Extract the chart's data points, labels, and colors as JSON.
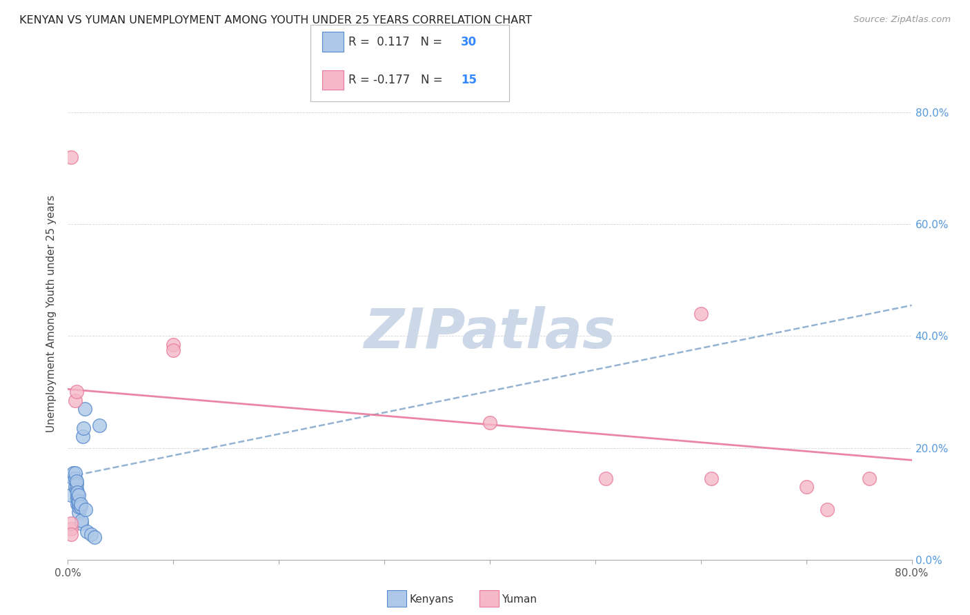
{
  "title": "KENYAN VS YUMAN UNEMPLOYMENT AMONG YOUTH UNDER 25 YEARS CORRELATION CHART",
  "source": "Source: ZipAtlas.com",
  "ylabel": "Unemployment Among Youth under 25 years",
  "legend_kenyans": "Kenyans",
  "legend_yuman": "Yuman",
  "r_kenyan": 0.117,
  "n_kenyan": 30,
  "r_yuman": -0.177,
  "n_yuman": 15,
  "xlim": [
    0.0,
    0.8
  ],
  "ylim": [
    0.0,
    0.88
  ],
  "background_color": "#ffffff",
  "kenyan_color": "#adc8e8",
  "kenyan_edge_color": "#5588cc",
  "yuman_color": "#f5b8c8",
  "yuman_edge_color": "#e8799a",
  "kenyan_line_color": "#88aacc",
  "yuman_line_color": "#e8799a",
  "kenyan_points_x": [
    0.003,
    0.005,
    0.005,
    0.007,
    0.007,
    0.007,
    0.008,
    0.008,
    0.008,
    0.009,
    0.009,
    0.009,
    0.009,
    0.01,
    0.01,
    0.01,
    0.01,
    0.01,
    0.012,
    0.012,
    0.013,
    0.013,
    0.014,
    0.015,
    0.016,
    0.017,
    0.018,
    0.022,
    0.025,
    0.03
  ],
  "kenyan_points_y": [
    0.115,
    0.145,
    0.155,
    0.13,
    0.145,
    0.155,
    0.125,
    0.135,
    0.14,
    0.1,
    0.11,
    0.115,
    0.12,
    0.085,
    0.095,
    0.1,
    0.105,
    0.115,
    0.095,
    0.1,
    0.065,
    0.07,
    0.22,
    0.235,
    0.27,
    0.09,
    0.05,
    0.045,
    0.04,
    0.24
  ],
  "yuman_points_x": [
    0.003,
    0.007,
    0.008,
    0.1,
    0.1,
    0.4,
    0.51,
    0.6,
    0.61,
    0.7,
    0.72,
    0.76,
    0.003,
    0.003,
    0.003
  ],
  "yuman_points_y": [
    0.72,
    0.285,
    0.3,
    0.385,
    0.375,
    0.245,
    0.145,
    0.44,
    0.145,
    0.13,
    0.09,
    0.145,
    0.055,
    0.065,
    0.045
  ],
  "kenyan_line_x0": 0.0,
  "kenyan_line_y0": 0.148,
  "kenyan_line_x1": 0.8,
  "kenyan_line_y1": 0.455,
  "yuman_line_x0": 0.0,
  "yuman_line_y0": 0.305,
  "yuman_line_x1": 0.8,
  "yuman_line_y1": 0.178,
  "watermark_text": "ZIPatlas",
  "watermark_color": "#ccd8e8",
  "grid_color": "#cccccc",
  "ytick_color": "#5599dd",
  "tick_label_color": "#555555"
}
